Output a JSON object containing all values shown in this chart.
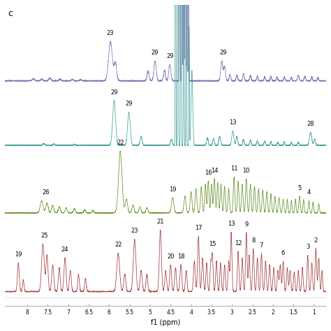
{
  "xlim": [
    8.55,
    0.7
  ],
  "ylim": [
    -0.05,
    1.0
  ],
  "xticks": [
    8.0,
    7.5,
    7.0,
    6.5,
    6.0,
    5.5,
    5.0,
    4.5,
    4.0,
    3.5,
    3.0,
    2.5,
    2.0,
    1.5,
    1.0
  ],
  "xlabel": "f1 (ppm)",
  "background_color": "#ffffff",
  "label_c": "c",
  "colors": {
    "purple": "#7b68b0",
    "teal": "#3a9a96",
    "green": "#5a8a1a",
    "red": "#9b3030"
  },
  "offsets": {
    "purple": 0.75,
    "teal": 0.52,
    "green": 0.28,
    "red": 0.0
  },
  "trace_height": {
    "purple": 0.14,
    "teal": 0.16,
    "green": 0.22,
    "red": 0.22
  }
}
